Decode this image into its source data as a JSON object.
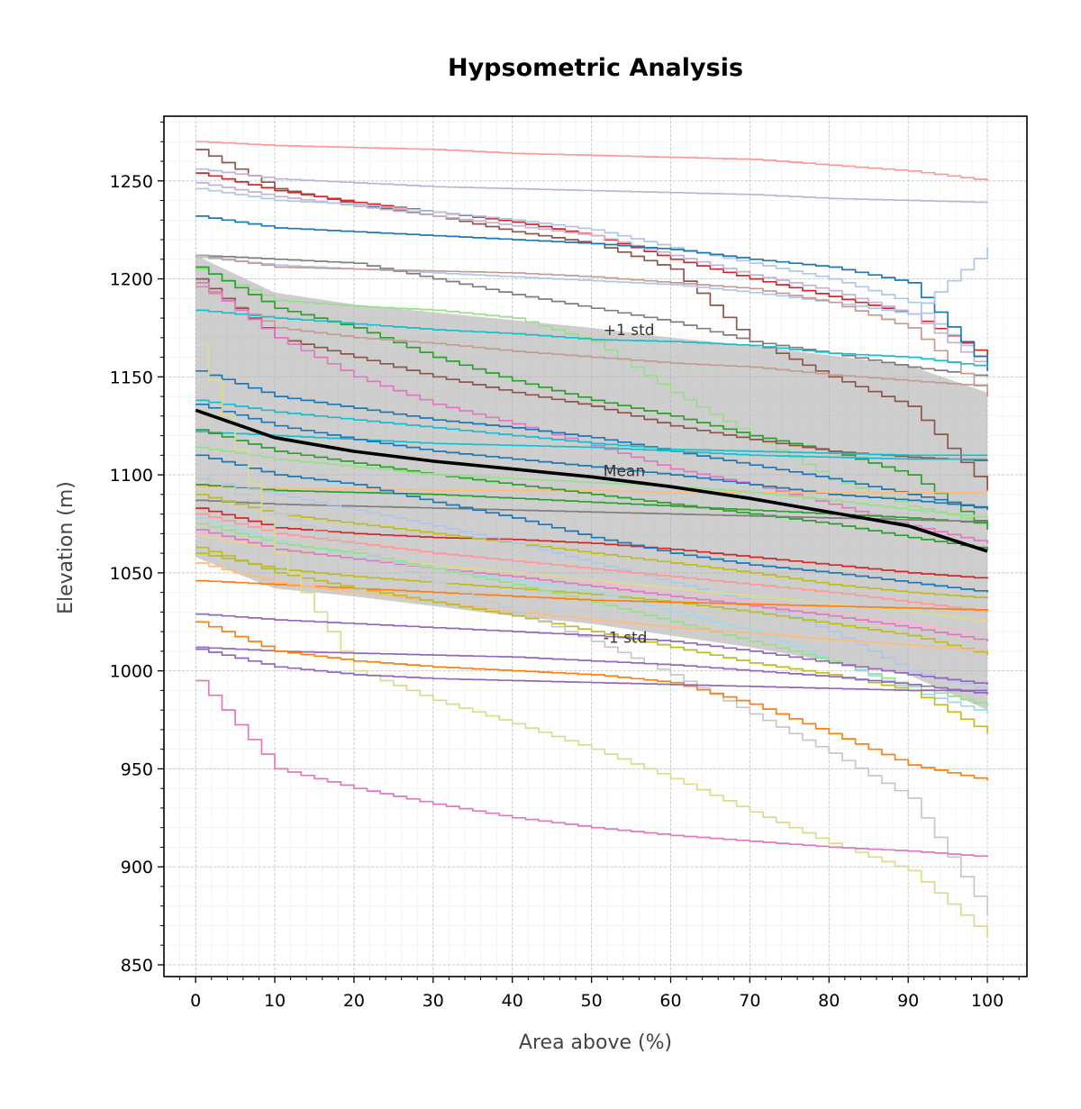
{
  "chart_data": {
    "type": "line",
    "title": "Hypsometric Analysis",
    "xlabel": "Area above (%)",
    "ylabel": "Elevation (m)",
    "xlim": [
      -4,
      105
    ],
    "ylim": [
      844,
      1283
    ],
    "x_ticks": [
      0,
      10,
      20,
      30,
      40,
      50,
      60,
      70,
      80,
      90,
      100
    ],
    "y_ticks": [
      850,
      900,
      950,
      1000,
      1050,
      1100,
      1150,
      1200,
      1250
    ],
    "grid": true,
    "annotations": {
      "mean": "Mean",
      "plus_std": "+1 std",
      "minus_std": "-1 std"
    },
    "x": [
      0,
      10,
      20,
      30,
      40,
      50,
      60,
      70,
      80,
      90,
      100
    ],
    "mean": [
      1133,
      1119,
      1112,
      1107,
      1103,
      1099,
      1094,
      1088,
      1081,
      1074,
      1061
    ],
    "upper_std": [
      1212,
      1193,
      1187,
      1183,
      1179,
      1175,
      1170,
      1166,
      1161,
      1156,
      1142
    ],
    "lower_std": [
      1058,
      1042,
      1038,
      1033,
      1028,
      1024,
      1018,
      1012,
      1005,
      998,
      980
    ],
    "series": [
      {
        "color": "#ff9896",
        "values": [
          1270,
          1268,
          1267,
          1266,
          1264,
          1263,
          1262,
          1261,
          1258,
          1255,
          1250
        ]
      },
      {
        "color": "#8c564b",
        "values": [
          1266,
          1246,
          1238,
          1232,
          1224,
          1218,
          1205,
          1168,
          1150,
          1135,
          1092
        ]
      },
      {
        "color": "#c5b0d5",
        "values": [
          1256,
          1251,
          1249,
          1247,
          1246,
          1245,
          1244,
          1243,
          1241,
          1240,
          1239
        ]
      },
      {
        "color": "#d62728",
        "values": [
          1254,
          1245,
          1239,
          1234,
          1229,
          1222,
          1210,
          1200,
          1191,
          1182,
          1160
        ]
      },
      {
        "color": "#c5b0d5",
        "values": [
          1249,
          1242,
          1237,
          1232,
          1227,
          1222,
          1212,
          1202,
          1194,
          1182,
          1153
        ]
      },
      {
        "color": "#aec7e8",
        "values": [
          1246,
          1240,
          1238,
          1234,
          1230,
          1225,
          1216,
          1208,
          1200,
          1188,
          1155
        ]
      },
      {
        "color": "#1f77b4",
        "values": [
          1232,
          1226,
          1224,
          1222,
          1220,
          1218,
          1215,
          1210,
          1206,
          1198,
          1153
        ]
      },
      {
        "color": "#aec7e8",
        "values": [
          1211,
          1207,
          1205,
          1203,
          1201,
          1199,
          1197,
          1193,
          1188,
          1182,
          1216
        ]
      },
      {
        "color": "#7f7f7f",
        "values": [
          1212,
          1210,
          1208,
          1200,
          1192,
          1185,
          1178,
          1168,
          1162,
          1155,
          1150
        ]
      },
      {
        "color": "#c49c94",
        "values": [
          1212,
          1206,
          1205,
          1204,
          1203,
          1201,
          1198,
          1195,
          1188,
          1175,
          1140
        ]
      },
      {
        "color": "#98df8a",
        "values": [
          1205,
          1189,
          1186,
          1184,
          1180,
          1168,
          1142,
          1120,
          1098,
          1084,
          1075
        ]
      },
      {
        "color": "#2ca02c",
        "values": [
          1206,
          1185,
          1175,
          1160,
          1148,
          1138,
          1130,
          1120,
          1112,
          1100,
          1072
        ]
      },
      {
        "color": "#17becf",
        "values": [
          1184,
          1180,
          1177,
          1174,
          1172,
          1169,
          1168,
          1166,
          1162,
          1160,
          1155
        ]
      },
      {
        "color": "#c49c94",
        "values": [
          1196,
          1175,
          1170,
          1167,
          1163,
          1160,
          1157,
          1155,
          1151,
          1148,
          1145
        ]
      },
      {
        "color": "#8c564b",
        "values": [
          1200,
          1170,
          1160,
          1150,
          1142,
          1135,
          1125,
          1118,
          1112,
          1109,
          1107
        ]
      },
      {
        "color": "#e377c2",
        "values": [
          1198,
          1170,
          1150,
          1136,
          1126,
          1115,
          1103,
          1095,
          1085,
          1074,
          1065
        ]
      },
      {
        "color": "#1f77b4",
        "values": [
          1153,
          1140,
          1134,
          1128,
          1124,
          1119,
          1112,
          1105,
          1098,
          1090,
          1082
        ]
      },
      {
        "color": "#17becf",
        "values": [
          1138,
          1132,
          1128,
          1124,
          1120,
          1116,
          1113,
          1112,
          1111,
          1110,
          1110
        ]
      },
      {
        "color": "#17becf",
        "values": [
          1122,
          1120,
          1118,
          1116,
          1115,
          1114,
          1112,
          1110,
          1109,
          1108,
          1108
        ]
      },
      {
        "color": "#1f77b4",
        "values": [
          1136,
          1125,
          1118,
          1112,
          1108,
          1104,
          1100,
          1095,
          1090,
          1087,
          1083
        ]
      },
      {
        "color": "#ffbb78",
        "values": [
          1094,
          1093,
          1093,
          1092,
          1092,
          1092,
          1091,
          1091,
          1091,
          1091,
          1091
        ]
      },
      {
        "color": "#2ca02c",
        "values": [
          1123,
          1112,
          1106,
          1100,
          1095,
          1090,
          1085,
          1080,
          1075,
          1068,
          1062
        ]
      },
      {
        "color": "#98df8a",
        "values": [
          1114,
          1108,
          1104,
          1100,
          1098,
          1096,
          1094,
          1091,
          1087,
          1082,
          1078
        ]
      },
      {
        "color": "#2ca02c",
        "values": [
          1095,
          1092,
          1091,
          1090,
          1088,
          1086,
          1084,
          1082,
          1080,
          1078,
          1075
        ]
      },
      {
        "color": "#7f7f7f",
        "values": [
          1087,
          1085,
          1084,
          1083,
          1082,
          1081,
          1080,
          1079,
          1078,
          1077,
          1076
        ]
      },
      {
        "color": "#d62728",
        "values": [
          1083,
          1073,
          1070,
          1068,
          1067,
          1065,
          1062,
          1058,
          1054,
          1050,
          1047
        ]
      },
      {
        "color": "#1f77b4",
        "values": [
          1110,
          1100,
          1095,
          1086,
          1078,
          1068,
          1060,
          1054,
          1050,
          1045,
          1040
        ]
      },
      {
        "color": "#bcbd22",
        "values": [
          1090,
          1080,
          1075,
          1070,
          1065,
          1060,
          1055,
          1050,
          1044,
          1040,
          1037
        ]
      },
      {
        "color": "#aec7e8",
        "values": [
          1098,
          1090,
          1082,
          1074,
          1065,
          1055,
          1045,
          1035,
          1020,
          1000,
          990
        ]
      },
      {
        "color": "#ff9896",
        "values": [
          1080,
          1070,
          1065,
          1060,
          1056,
          1052,
          1048,
          1044,
          1040,
          1035,
          1030
        ]
      },
      {
        "color": "#f7b6d2",
        "values": [
          1070,
          1062,
          1058,
          1054,
          1050,
          1045,
          1040,
          1035,
          1030,
          1024,
          1018
        ]
      },
      {
        "color": "#dbdb8d",
        "values": [
          1069,
          1062,
          1058,
          1054,
          1050,
          1046,
          1042,
          1038,
          1034,
          1030,
          1025
        ]
      },
      {
        "color": "#e377c2",
        "values": [
          1072,
          1062,
          1057,
          1052,
          1048,
          1043,
          1038,
          1033,
          1028,
          1022,
          1015
        ]
      },
      {
        "color": "#bcbd22",
        "values": [
          1060,
          1052,
          1048,
          1045,
          1042,
          1039,
          1035,
          1030,
          1024,
          1018,
          1008
        ]
      },
      {
        "color": "#9edae5",
        "values": [
          1078,
          1066,
          1058,
          1052,
          1046,
          1040,
          1030,
          1020,
          1005,
          990,
          978
        ]
      },
      {
        "color": "#98df8a",
        "values": [
          1075,
          1065,
          1060,
          1052,
          1044,
          1035,
          1025,
          1015,
          1005,
          992,
          982
        ]
      },
      {
        "color": "#ff7f0e",
        "values": [
          1046,
          1044,
          1042,
          1040,
          1038,
          1036,
          1035,
          1034,
          1033,
          1032,
          1031
        ]
      },
      {
        "color": "#ffbb78",
        "values": [
          1055,
          1045,
          1040,
          1035,
          1030,
          1026,
          1022,
          1019,
          1016,
          1013,
          1010
        ]
      },
      {
        "color": "#bcbd22",
        "values": [
          1063,
          1050,
          1042,
          1035,
          1028,
          1020,
          1012,
          1004,
          998,
          990,
          968
        ]
      },
      {
        "color": "#c7c7c7",
        "values": [
          1100,
          1080,
          1062,
          1045,
          1030,
          1015,
          998,
          978,
          958,
          935,
          875
        ]
      },
      {
        "color": "#dbdb8d",
        "values": [
          1166,
          1060,
          1000,
          985,
          973,
          960,
          945,
          928,
          912,
          898,
          864
        ]
      },
      {
        "color": "#9467bd",
        "values": [
          1029,
          1026,
          1024,
          1022,
          1020,
          1018,
          1015,
          1010,
          1004,
          998,
          993
        ]
      },
      {
        "color": "#9467bd",
        "values": [
          1012,
          1010,
          1009,
          1008,
          1007,
          1005,
          1003,
          1000,
          997,
          993,
          988
        ]
      },
      {
        "color": "#ff7f0e",
        "values": [
          1025,
          1010,
          1005,
          1002,
          1000,
          998,
          994,
          983,
          968,
          952,
          944
        ]
      },
      {
        "color": "#9467bd",
        "values": [
          1011,
          1002,
          998,
          996,
          995,
          994,
          993,
          992,
          991,
          990,
          990
        ]
      },
      {
        "color": "#e377c2",
        "values": [
          995,
          950,
          940,
          932,
          925,
          920,
          916,
          913,
          910,
          908,
          905
        ]
      }
    ]
  }
}
